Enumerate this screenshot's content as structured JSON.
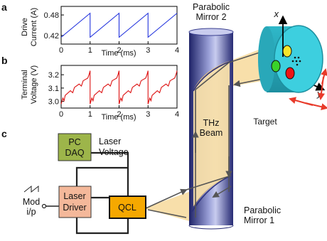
{
  "panels": {
    "a": "a",
    "b": "b",
    "c": "c"
  },
  "chart_data": [
    {
      "type": "line",
      "panel": "a",
      "title": "",
      "xlabel": "Time (ms)",
      "ylabel": [
        "Drive",
        "Current (A)"
      ],
      "xticks": [
        "0",
        "1",
        "2",
        "3",
        "4"
      ],
      "yticks": [
        "0.42",
        "0.48"
      ],
      "xlim": [
        0,
        4
      ],
      "ylim": [
        0.395,
        0.505
      ],
      "waveform": "sawtooth",
      "period_ms": 1,
      "min": 0.415,
      "max": 0.485,
      "color": "#2233dd"
    },
    {
      "type": "line",
      "panel": "b",
      "title": "",
      "xlabel": "Time (ms)",
      "ylabel": [
        "Terminal",
        "Voltage (V)"
      ],
      "xticks": [
        "0",
        "1",
        "2",
        "3",
        "4"
      ],
      "yticks": [
        "3.0",
        "3.1",
        "3.2"
      ],
      "xlim": [
        0,
        4
      ],
      "ylim": [
        2.95,
        3.27
      ],
      "waveform": "sawtooth with feedback dips",
      "period_ms": 1,
      "min": 2.98,
      "max": 3.23,
      "color": "#dd1111"
    }
  ],
  "diagram": {
    "pc_daq": [
      "PC",
      "DAQ"
    ],
    "laser_driver": [
      "Laser",
      "Driver"
    ],
    "qcl": "QCL",
    "laser_voltage": [
      "Laser",
      "Voltage"
    ],
    "mod_input": [
      "Mod",
      "i/p"
    ],
    "mirror2": [
      "Parabolic",
      "Mirror 2"
    ],
    "mirror1": [
      "Parabolic",
      "Mirror 1"
    ],
    "beam": [
      "THz",
      "Beam"
    ],
    "target": "Target",
    "axis_x": "x",
    "axis_y": "y",
    "colors": {
      "pc_daq": "#9db54a",
      "laser_driver": "#f4b89a",
      "qcl": "#f5a800",
      "beam": "#f8dfaa",
      "mirror": "#3a3f8f",
      "target": "#3dcfdf",
      "dot_yellow": "#f6e52a",
      "dot_green": "#3ad22a",
      "dot_red": "#ee1515",
      "motion_arrows": "#e83a2a"
    }
  }
}
